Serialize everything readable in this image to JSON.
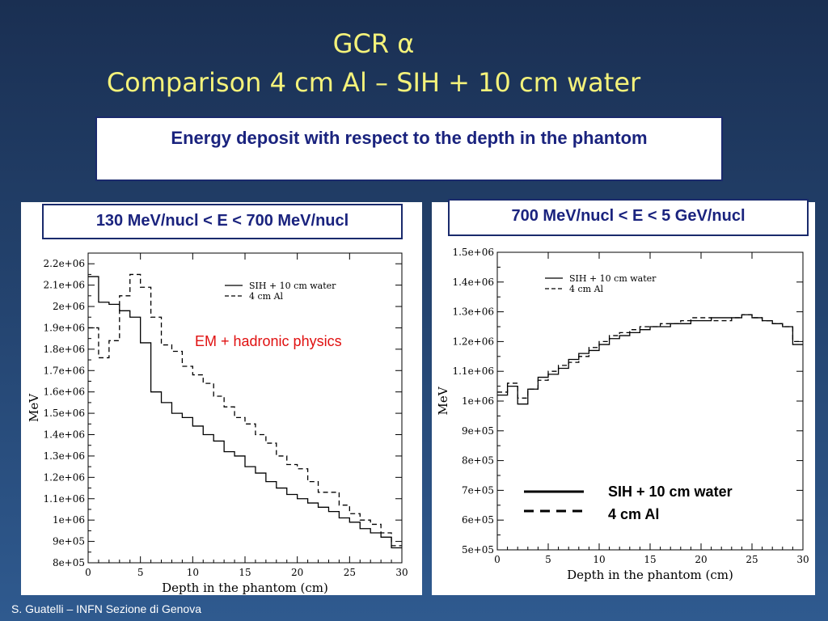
{
  "title_line1": "GCR α",
  "title_line2": "Comparison 4 cm Al – SIH + 10 cm water",
  "subtitle": "Energy deposit  with respect to the depth in the phantom",
  "footer": "S. Guatelli – INFN Sezione di Genova",
  "colors": {
    "title": "#f4f27a",
    "box_text": "#1a237e",
    "note": "#e01010"
  },
  "chart_data": [
    {
      "type": "line",
      "panel_label": "130 MeV/nucl < E < 700 MeV/nucl",
      "note": "EM + hadronic physics",
      "xlabel": "Depth in the phantom (cm)",
      "ylabel": "MeV",
      "xlim": [
        0,
        30
      ],
      "ylim": [
        800000,
        2250000
      ],
      "xticks": [
        0,
        5,
        10,
        15,
        20,
        25,
        30
      ],
      "yticks": [
        800000,
        900000,
        1000000,
        1100000,
        1200000,
        1300000,
        1400000,
        1500000,
        1600000,
        1700000,
        1800000,
        1900000,
        2000000,
        2100000,
        2200000
      ],
      "ytick_labels": [
        "8e+05",
        "9e+05",
        "1e+06",
        "1.1e+06",
        "1.2e+06",
        "1.3e+06",
        "1.4e+06",
        "1.5e+06",
        "1.6e+06",
        "1.7e+06",
        "1.8e+06",
        "1.9e+06",
        "2e+06",
        "2.1e+06",
        "2.2e+06"
      ],
      "legend_placement": "top-right",
      "bin_width": 1,
      "series": [
        {
          "name": "SIH + 10 cm water",
          "style": "solid",
          "values": [
            2140000,
            2020000,
            2010000,
            1980000,
            1950000,
            1830000,
            1600000,
            1550000,
            1500000,
            1480000,
            1440000,
            1400000,
            1370000,
            1320000,
            1300000,
            1250000,
            1220000,
            1180000,
            1150000,
            1120000,
            1100000,
            1080000,
            1060000,
            1040000,
            1010000,
            990000,
            960000,
            940000,
            920000,
            870000
          ]
        },
        {
          "name": "4 cm Al",
          "style": "dashed",
          "values": [
            1900000,
            1760000,
            1840000,
            2050000,
            2150000,
            2090000,
            1950000,
            1820000,
            1790000,
            1720000,
            1680000,
            1640000,
            1580000,
            1530000,
            1480000,
            1450000,
            1400000,
            1360000,
            1300000,
            1260000,
            1240000,
            1180000,
            1130000,
            1130000,
            1070000,
            1030000,
            1000000,
            980000,
            940000,
            880000
          ]
        }
      ]
    },
    {
      "type": "line",
      "panel_label": "700 MeV/nucl < E < 5 GeV/nucl",
      "xlabel": "Depth in the phantom (cm)",
      "ylabel": "MeV",
      "xlim": [
        0,
        30
      ],
      "ylim": [
        500000,
        1500000
      ],
      "xticks": [
        0,
        5,
        10,
        15,
        20,
        25,
        30
      ],
      "yticks": [
        500000,
        600000,
        700000,
        800000,
        900000,
        1000000,
        1100000,
        1200000,
        1300000,
        1400000,
        1500000
      ],
      "ytick_labels": [
        "5e+05",
        "6e+05",
        "7e+05",
        "8e+05",
        "9e+05",
        "1e+06",
        "1.1e+06",
        "1.2e+06",
        "1.3e+06",
        "1.4e+06",
        "1.5e+06"
      ],
      "legend_placement": "top-left",
      "big_legend": [
        "SIH + 10 cm water",
        "4 cm Al"
      ],
      "bin_width": 1,
      "series": [
        {
          "name": "SIH + 10 cm water",
          "style": "solid",
          "values": [
            1020000,
            1050000,
            990000,
            1040000,
            1080000,
            1090000,
            1110000,
            1140000,
            1160000,
            1170000,
            1190000,
            1210000,
            1220000,
            1230000,
            1240000,
            1250000,
            1250000,
            1260000,
            1260000,
            1270000,
            1270000,
            1280000,
            1280000,
            1280000,
            1290000,
            1280000,
            1270000,
            1260000,
            1250000,
            1190000
          ]
        },
        {
          "name": "4 cm Al",
          "style": "dashed",
          "values": [
            1030000,
            1060000,
            1010000,
            1040000,
            1070000,
            1100000,
            1120000,
            1130000,
            1150000,
            1180000,
            1200000,
            1220000,
            1230000,
            1240000,
            1250000,
            1250000,
            1260000,
            1260000,
            1270000,
            1280000,
            1280000,
            1270000,
            1270000,
            1280000,
            1290000,
            1280000,
            1270000,
            1260000,
            1250000,
            1200000
          ]
        }
      ]
    }
  ]
}
